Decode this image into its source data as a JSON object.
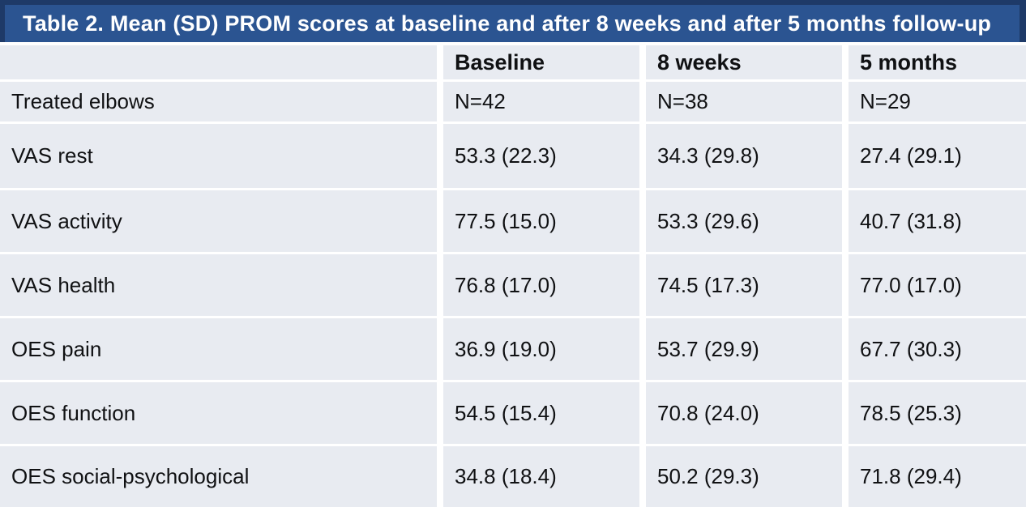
{
  "title": "Table 2. Mean (SD) PROM scores at baseline and after 8 weeks and after 5 months follow-up",
  "colors": {
    "title_bar_background": "#2B5491",
    "title_bar_border": "#1E3A68",
    "title_text": "#FFFFFF",
    "row_background": "#E8EBF1",
    "body_text": "#101113",
    "cell_gap": "#FFFFFF"
  },
  "table": {
    "columns": [
      "",
      "Baseline",
      "8 weeks",
      "5 months"
    ],
    "rows": [
      {
        "label": "Treated elbows",
        "values": [
          "N=42",
          "N=38",
          "N=29"
        ]
      },
      {
        "label": "VAS rest",
        "values": [
          "53.3 (22.3)",
          "34.3 (29.8)",
          "27.4 (29.1)"
        ]
      },
      {
        "label": "VAS activity",
        "values": [
          "77.5 (15.0)",
          "53.3 (29.6)",
          "40.7 (31.8)"
        ]
      },
      {
        "label": "VAS health",
        "values": [
          "76.8 (17.0)",
          "74.5 (17.3)",
          "77.0 (17.0)"
        ]
      },
      {
        "label": "OES pain",
        "values": [
          "36.9 (19.0)",
          "53.7 (29.9)",
          "67.7 (30.3)"
        ]
      },
      {
        "label": "OES function",
        "values": [
          "54.5 (15.4)",
          "70.8 (24.0)",
          "78.5 (25.3)"
        ]
      },
      {
        "label": "OES social-psychological",
        "values": [
          "34.8 (18.4)",
          "50.2 (29.3)",
          "71.8 (29.4)"
        ]
      }
    ]
  },
  "chart_data": {
    "type": "table",
    "title": "Table 2. Mean (SD) PROM scores at baseline and after 8 weeks and after 5 months follow-up",
    "categories": [
      "Baseline",
      "8 weeks",
      "5 months"
    ],
    "n_per_timepoint": [
      42,
      38,
      29
    ],
    "series": [
      {
        "name": "VAS rest",
        "mean": [
          53.3,
          34.3,
          27.4
        ],
        "sd": [
          22.3,
          29.8,
          29.1
        ]
      },
      {
        "name": "VAS activity",
        "mean": [
          77.5,
          53.3,
          40.7
        ],
        "sd": [
          15.0,
          29.6,
          31.8
        ]
      },
      {
        "name": "VAS health",
        "mean": [
          76.8,
          74.5,
          77.0
        ],
        "sd": [
          17.0,
          17.3,
          17.0
        ]
      },
      {
        "name": "OES pain",
        "mean": [
          36.9,
          53.7,
          67.7
        ],
        "sd": [
          19.0,
          29.9,
          30.3
        ]
      },
      {
        "name": "OES function",
        "mean": [
          54.5,
          70.8,
          78.5
        ],
        "sd": [
          15.4,
          24.0,
          25.3
        ]
      },
      {
        "name": "OES social-psychological",
        "mean": [
          34.8,
          50.2,
          71.8
        ],
        "sd": [
          18.4,
          29.3,
          29.4
        ]
      }
    ]
  }
}
